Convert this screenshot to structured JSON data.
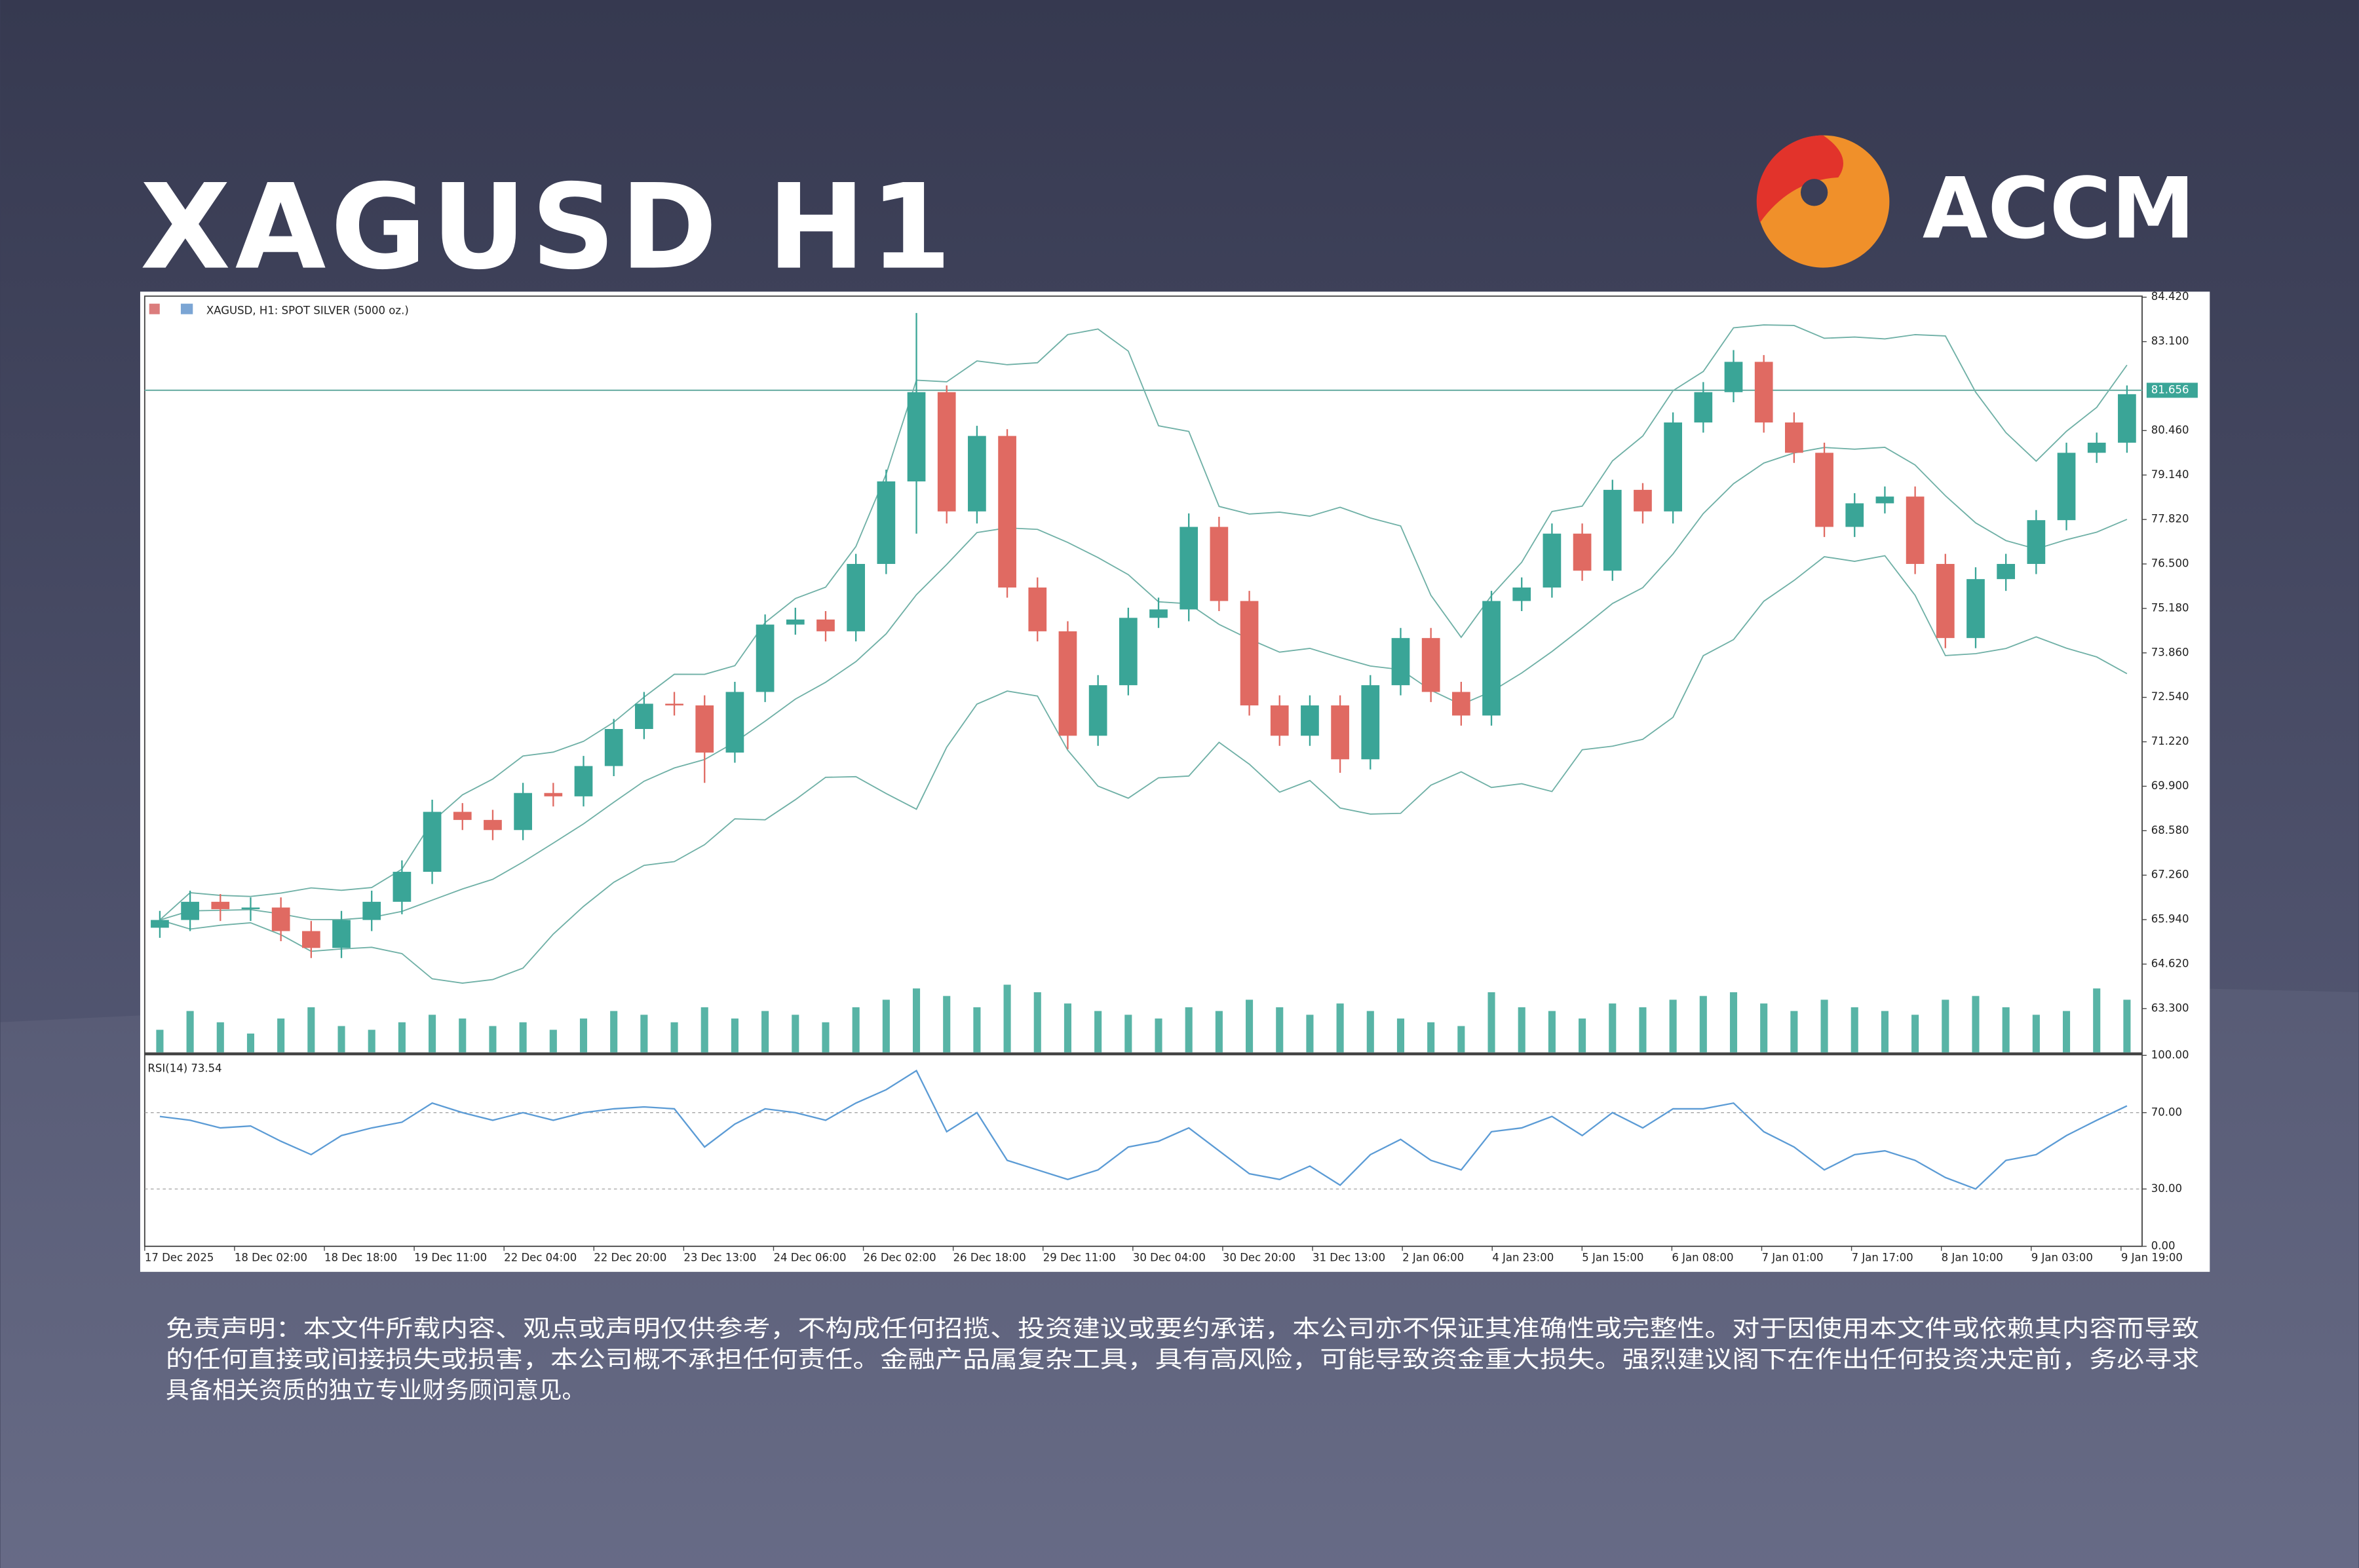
{
  "header": {
    "title": "XAGUSD H1",
    "logo": "ACCM"
  },
  "chart_data": {
    "type": "candlestick",
    "title": "XAGUSD, H1:  SPOT SILVER (5000 oz.)",
    "x_labels": [
      "17 Dec 2025",
      "18 Dec 02:00",
      "18 Dec 18:00",
      "19 Dec 11:00",
      "22 Dec 04:00",
      "22 Dec 20:00",
      "23 Dec 13:00",
      "24 Dec 06:00",
      "26 Dec 02:00",
      "26 Dec 18:00",
      "29 Dec 11:00",
      "30 Dec 04:00",
      "30 Dec 20:00",
      "31 Dec 13:00",
      "2 Jan 06:00",
      "4 Jan 23:00",
      "5 Jan 15:00",
      "6 Jan 08:00",
      "7 Jan 01:00",
      "7 Jan 17:00",
      "8 Jan 10:00",
      "9 Jan 03:00",
      "9 Jan 19:00"
    ],
    "open": [
      65.7,
      65.93,
      66.47,
      66.25,
      66.3,
      65.6,
      65.1,
      65.93,
      66.47,
      67.36,
      69.14,
      68.9,
      68.6,
      69.7,
      69.6,
      70.5,
      71.6,
      72.35,
      72.3,
      70.9,
      72.7,
      74.7,
      74.85,
      74.5,
      76.5,
      78.95,
      81.6,
      78.06,
      80.3,
      75.8,
      74.5,
      71.4,
      72.9,
      74.9,
      75.15,
      77.6,
      75.4,
      72.3,
      71.4,
      72.3,
      70.7,
      72.9,
      74.3,
      72.7,
      72.0,
      75.4,
      75.8,
      77.4,
      76.3,
      78.7,
      78.06,
      80.7,
      81.6,
      82.5,
      80.7,
      79.8,
      77.6,
      78.3,
      78.5,
      76.5,
      74.3,
      76.05,
      76.5,
      77.8,
      79.8,
      80.1
    ],
    "high": [
      66.2,
      66.8,
      66.7,
      66.6,
      66.6,
      65.9,
      66.2,
      66.8,
      67.7,
      69.5,
      69.4,
      69.2,
      70.0,
      70.0,
      70.8,
      71.9,
      72.7,
      72.7,
      72.6,
      73.0,
      75.0,
      75.2,
      75.1,
      76.8,
      79.3,
      83.95,
      81.8,
      80.6,
      80.5,
      76.1,
      74.8,
      73.2,
      75.2,
      75.5,
      78.0,
      77.9,
      75.7,
      72.6,
      72.6,
      72.6,
      73.2,
      74.6,
      74.6,
      73.0,
      75.7,
      76.1,
      77.7,
      77.7,
      79.0,
      78.9,
      81.0,
      81.9,
      82.85,
      82.7,
      81.0,
      80.1,
      78.6,
      78.8,
      78.8,
      76.8,
      76.4,
      76.8,
      78.1,
      80.1,
      80.4,
      81.8
    ],
    "low": [
      65.4,
      65.6,
      65.9,
      65.9,
      65.3,
      64.8,
      64.8,
      65.6,
      66.1,
      67.0,
      68.6,
      68.3,
      68.3,
      69.3,
      69.3,
      70.2,
      71.3,
      72.0,
      70.0,
      70.6,
      72.4,
      74.4,
      74.2,
      74.2,
      76.2,
      77.4,
      77.7,
      77.7,
      75.5,
      74.2,
      71.0,
      71.1,
      72.6,
      74.6,
      74.8,
      75.1,
      72.0,
      71.1,
      71.1,
      70.3,
      70.4,
      72.6,
      72.4,
      71.7,
      71.7,
      75.1,
      75.5,
      76.0,
      76.0,
      77.7,
      77.7,
      80.4,
      81.3,
      80.4,
      79.5,
      77.3,
      77.3,
      78.0,
      76.2,
      74.0,
      74.0,
      75.7,
      76.2,
      77.5,
      79.5,
      79.8
    ],
    "close": [
      65.93,
      66.47,
      66.25,
      66.3,
      65.6,
      65.1,
      65.93,
      66.47,
      67.36,
      69.14,
      68.9,
      68.6,
      69.7,
      69.6,
      70.5,
      71.6,
      72.35,
      72.3,
      70.9,
      72.7,
      74.7,
      74.85,
      74.5,
      76.5,
      78.95,
      81.6,
      78.06,
      80.3,
      75.8,
      74.5,
      71.4,
      72.9,
      74.9,
      75.15,
      77.6,
      75.4,
      72.3,
      71.4,
      72.3,
      70.7,
      72.9,
      74.3,
      72.7,
      72.0,
      75.4,
      75.8,
      77.4,
      76.3,
      78.7,
      78.06,
      80.7,
      81.6,
      82.5,
      80.7,
      79.8,
      77.6,
      78.3,
      78.5,
      76.5,
      74.3,
      76.05,
      76.5,
      77.8,
      79.8,
      80.1,
      81.54
    ],
    "volume": [
      30,
      55,
      40,
      25,
      45,
      60,
      35,
      30,
      40,
      50,
      45,
      35,
      40,
      30,
      45,
      55,
      50,
      40,
      60,
      45,
      55,
      50,
      40,
      60,
      70,
      85,
      75,
      60,
      90,
      80,
      65,
      55,
      50,
      45,
      60,
      55,
      70,
      60,
      50,
      65,
      55,
      45,
      40,
      35,
      80,
      60,
      55,
      45,
      65,
      60,
      70,
      75,
      80,
      65,
      55,
      70,
      60,
      55,
      50,
      70,
      75,
      60,
      50,
      55,
      85,
      70
    ],
    "colors": {
      "up": "#3aa597",
      "down": "#e06a62",
      "band": "#6fb0a6",
      "volume": "#58b4a6"
    },
    "ylim": [
      62.0,
      84.45
    ],
    "yticks": [
      {
        "value": 84.42,
        "label": "84.420"
      },
      {
        "value": 83.1,
        "label": "83.100"
      },
      {
        "value": 80.46,
        "label": "80.460"
      },
      {
        "value": 79.14,
        "label": "79.140"
      },
      {
        "value": 77.82,
        "label": "77.820"
      },
      {
        "value": 76.5,
        "label": "76.500"
      },
      {
        "value": 75.18,
        "label": "75.180"
      },
      {
        "value": 73.86,
        "label": "73.860"
      },
      {
        "value": 72.54,
        "label": "72.540"
      },
      {
        "value": 71.22,
        "label": "71.220"
      },
      {
        "value": 69.9,
        "label": "69.900"
      },
      {
        "value": 68.58,
        "label": "68.580"
      },
      {
        "value": 67.26,
        "label": "67.260"
      },
      {
        "value": 65.94,
        "label": "65.940"
      },
      {
        "value": 64.62,
        "label": "64.620"
      },
      {
        "value": 63.3,
        "label": "63.300"
      }
    ],
    "hline": 81.656,
    "rsi": {
      "label": "RSI(14) 73.54",
      "color": "#5b9bd5",
      "values": [
        68,
        66,
        62,
        63,
        55,
        48,
        58,
        62,
        65,
        75,
        70,
        66,
        70,
        66,
        70,
        72,
        73,
        72,
        52,
        64,
        72,
        70,
        66,
        75,
        82,
        92,
        60,
        70,
        45,
        40,
        35,
        40,
        52,
        55,
        62,
        50,
        38,
        35,
        42,
        32,
        48,
        56,
        45,
        40,
        60,
        62,
        68,
        58,
        70,
        62,
        72,
        72,
        75,
        60,
        52,
        40,
        48,
        50,
        45,
        36,
        30,
        45,
        48,
        58,
        66,
        73.54
      ],
      "ylim": [
        0,
        100
      ],
      "yticks": [
        {
          "value": 100,
          "label": "100.00"
        },
        {
          "value": 70,
          "label": "70.00"
        },
        {
          "value": 30,
          "label": "30.00"
        },
        {
          "value": 0,
          "label": "0.00"
        }
      ]
    }
  },
  "disclaimer": {
    "lines": [
      "免责声明：本文件所载内容、观点或声明仅供参考，不构成任何招揽、投资建议或要约承诺，本公司亦不保证其准确性或完整性。对于因使用本文件或依赖其内容而导致",
      "的任何直接或间接损失或损害，本公司概不承担任何责任。金融产品属复杂工具，具有高风险，可能导致资金重大损失。强烈建议阁下在作出任何投资决定前，务必寻求",
      "具备相关资质的独立专业财务顾问意见。"
    ]
  }
}
